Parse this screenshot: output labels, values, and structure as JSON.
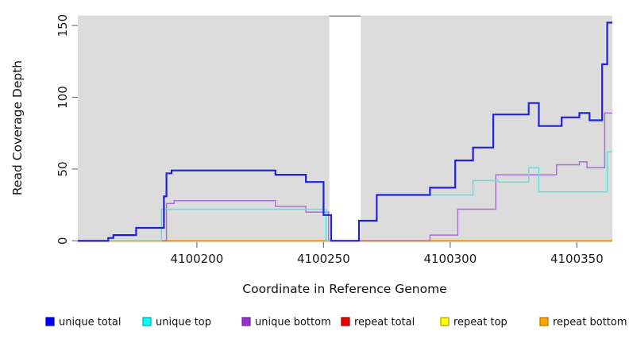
{
  "chart_data": {
    "type": "line",
    "subtype": "step-after",
    "title": "",
    "xlabel": "Coordinate in Reference Genome",
    "ylabel": "Read Coverage Depth",
    "xlim": [
      4100153,
      4100364
    ],
    "ylim": [
      0,
      157
    ],
    "xticks": [
      4100200,
      4100250,
      4100300,
      4100350
    ],
    "yticks": [
      0,
      50,
      100,
      150
    ],
    "grid": "off",
    "legend_position": "bottom",
    "panel_bg": "#DCDCDC",
    "tick_color": "#737373",
    "label_color": "#1A1A1A",
    "no_data_gap_x": [
      4100252.3,
      4100264.7
    ],
    "gap_cap_color": "#8C8C8C",
    "draw_order": [
      3,
      4,
      5,
      2,
      1,
      0
    ],
    "series": [
      {
        "name": "unique total",
        "color": "#2020DD",
        "legend_fill": "#0000FF",
        "legend_border": "#0000B3",
        "width": 2.2,
        "x_end": 4100364,
        "points": [
          [
            4100153,
            0
          ],
          [
            4100165,
            2
          ],
          [
            4100167,
            4
          ],
          [
            4100176,
            9
          ],
          [
            4100187,
            31
          ],
          [
            4100188,
            47
          ],
          [
            4100190,
            49
          ],
          [
            4100231,
            46
          ],
          [
            4100243,
            41
          ],
          [
            4100250,
            18
          ],
          [
            4100253,
            0
          ],
          [
            4100264,
            14
          ],
          [
            4100271,
            32
          ],
          [
            4100292,
            37
          ],
          [
            4100302,
            56
          ],
          [
            4100309,
            65
          ],
          [
            4100317,
            88
          ],
          [
            4100331,
            96
          ],
          [
            4100335,
            80
          ],
          [
            4100344,
            86
          ],
          [
            4100351,
            89
          ],
          [
            4100355,
            84
          ],
          [
            4100360,
            123
          ],
          [
            4100362,
            152
          ]
        ]
      },
      {
        "name": "unique top",
        "color": "#5CE2E2",
        "legend_fill": "#00FFFF",
        "legend_border": "#00A3A3",
        "width": 1.5,
        "x_end": 4100364,
        "points": [
          [
            4100153,
            0
          ],
          [
            4100186,
            22
          ],
          [
            4100251,
            0
          ],
          [
            4100264,
            14
          ],
          [
            4100271,
            32
          ],
          [
            4100309,
            42
          ],
          [
            4100319,
            41
          ],
          [
            4100331,
            51
          ],
          [
            4100335,
            34
          ],
          [
            4100362,
            62
          ]
        ]
      },
      {
        "name": "unique bottom",
        "color": "#AC6FD9",
        "legend_fill": "#9932CC",
        "legend_border": "#6E2494",
        "width": 1.5,
        "x_end": 4100364,
        "points": [
          [
            4100153,
            0
          ],
          [
            4100188,
            26
          ],
          [
            4100191,
            28
          ],
          [
            4100231,
            24
          ],
          [
            4100243,
            20
          ],
          [
            4100252,
            0
          ],
          [
            4100292,
            4
          ],
          [
            4100303,
            22
          ],
          [
            4100318,
            46
          ],
          [
            4100342,
            53
          ],
          [
            4100351,
            55
          ],
          [
            4100354,
            51
          ],
          [
            4100361,
            89
          ]
        ]
      },
      {
        "name": "repeat total",
        "color": "#CC0000",
        "legend_fill": "#EE0000",
        "legend_border": "#990000",
        "width": 1.2,
        "x_end": 4100364,
        "points": [
          [
            4100153,
            0
          ]
        ]
      },
      {
        "name": "repeat top",
        "color": "#E8E800",
        "legend_fill": "#FFFF00",
        "legend_border": "#A3A300",
        "width": 1.2,
        "x_end": 4100364,
        "points": [
          [
            4100153,
            0
          ]
        ]
      },
      {
        "name": "repeat bottom",
        "color": "#FF9800",
        "legend_fill": "#FFA500",
        "legend_border": "#B37400",
        "width": 2,
        "x_end": 4100364,
        "points": [
          [
            4100153,
            0
          ]
        ]
      }
    ]
  }
}
